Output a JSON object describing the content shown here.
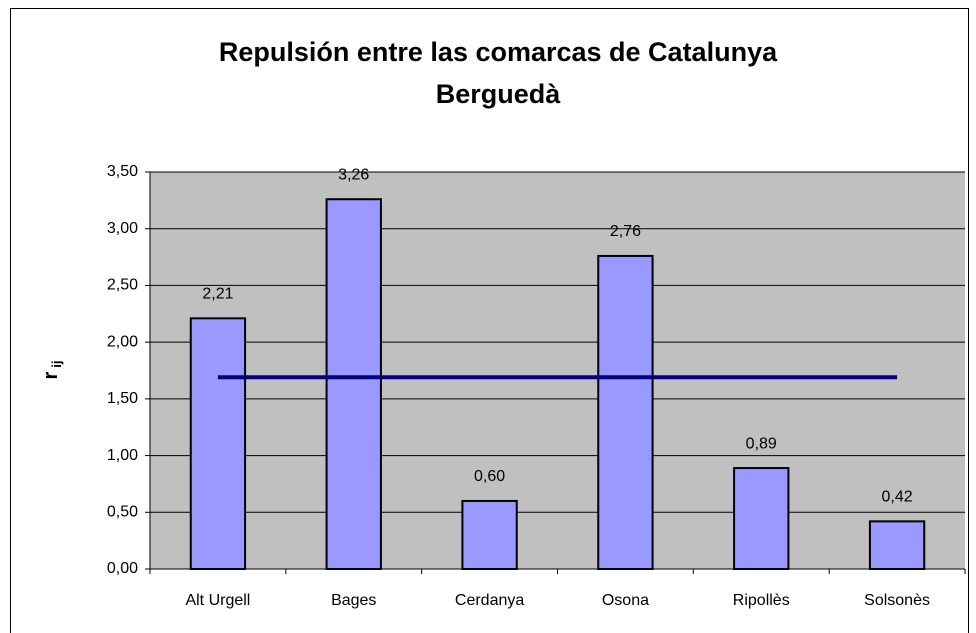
{
  "chart_data": {
    "type": "bar",
    "title": "Repulsión entre las comarcas de Catalunya",
    "subtitle": "Berguedà",
    "y_label": "r",
    "y_label_sub": "ij",
    "categories": [
      "Alt Urgell",
      "Bages",
      "Cerdanya",
      "Osona",
      "Ripollès",
      "Solsonès"
    ],
    "values": [
      2.21,
      3.26,
      0.6,
      2.76,
      0.89,
      0.42
    ],
    "value_labels": [
      "2,21",
      "3,26",
      "0,60",
      "2,76",
      "0,89",
      "0,42"
    ],
    "color": "#9999ff",
    "mean_line": {
      "value": 1.69,
      "color": "#000080"
    },
    "ylim": [
      0,
      3.5
    ],
    "yticks": [
      {
        "value": 0,
        "label": "0,00"
      },
      {
        "value": 0.5,
        "label": "0,50"
      },
      {
        "value": 1,
        "label": "1,00"
      },
      {
        "value": 1.5,
        "label": "1,50"
      },
      {
        "value": 2,
        "label": "2,00"
      },
      {
        "value": 2.5,
        "label": "2,50"
      },
      {
        "value": 3,
        "label": "3,00"
      },
      {
        "value": 3.5,
        "label": "3,50"
      }
    ],
    "grid": true,
    "plot_background": "#c0c0c0"
  }
}
